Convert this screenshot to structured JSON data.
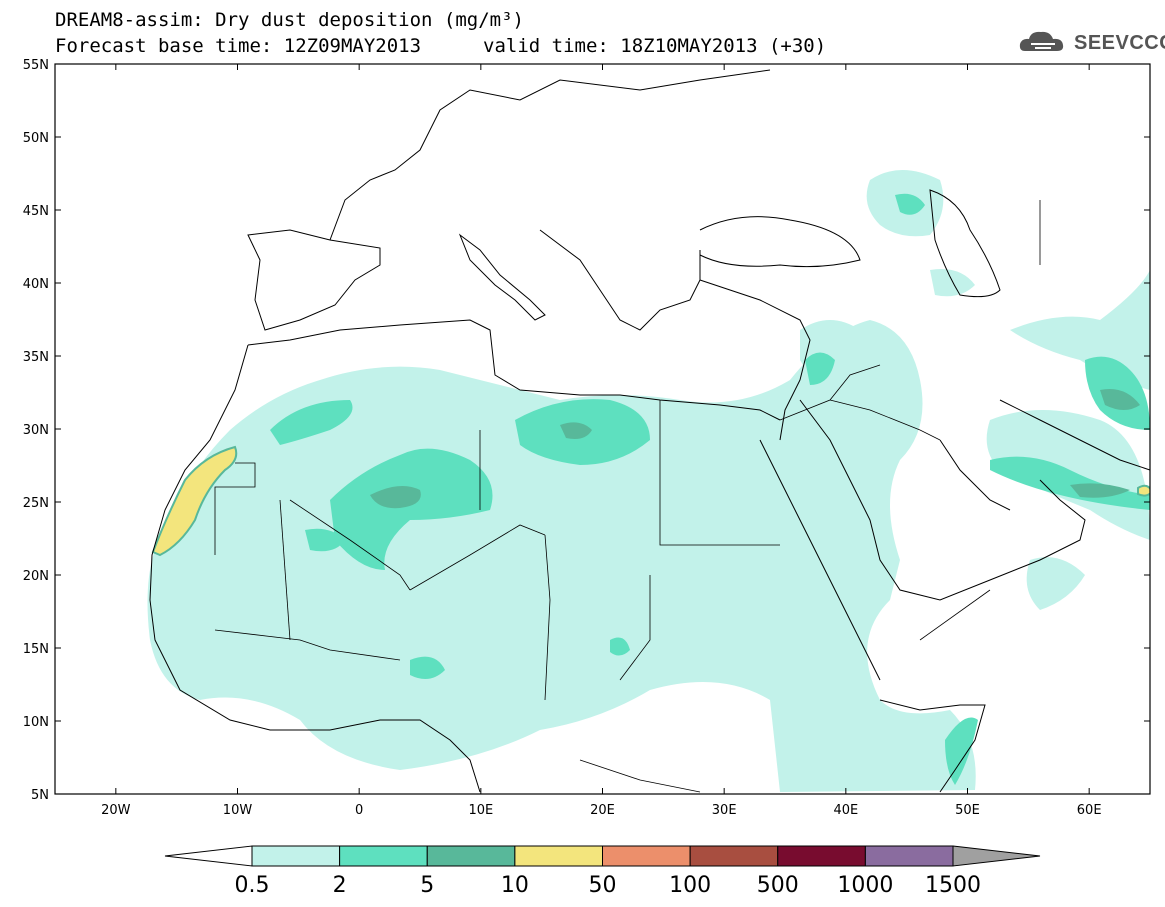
{
  "header": {
    "line1": "DREAM8-assim: Dry dust deposition (mg/m³)",
    "line2_left": "Forecast base time: 12Z09MAY2013",
    "line2_right": "valid time: 18Z10MAY2013 (+30)",
    "logo_text": "SEEVCCC",
    "logo_icon": "cloud-logo-icon"
  },
  "map": {
    "lat_labels": [
      "55N",
      "50N",
      "45N",
      "40N",
      "35N",
      "30N",
      "25N",
      "20N",
      "15N",
      "10N",
      "5N"
    ],
    "lon_labels": [
      "20W",
      "10W",
      "0",
      "10E",
      "20E",
      "30E",
      "40E",
      "50E",
      "60E"
    ],
    "lon_range": [
      -25,
      65
    ],
    "lat_range": [
      5,
      55
    ]
  },
  "colorbar": {
    "labels": [
      "0.5",
      "2",
      "5",
      "10",
      "50",
      "100",
      "500",
      "1000",
      "1500"
    ],
    "colors": [
      "#c2f2ea",
      "#5ee0bf",
      "#58b89a",
      "#f3e57d",
      "#ec8f6b",
      "#a84e40",
      "#780c2f",
      "#8a6c9f",
      "#a0a0a0"
    ],
    "under_color": "#ffffff",
    "over_color": "#a0a0a0"
  }
}
